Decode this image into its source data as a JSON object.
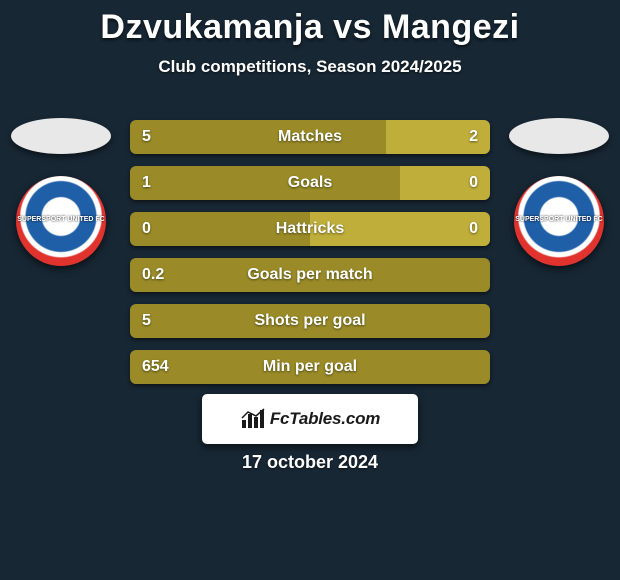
{
  "title": "Dzvukamanja vs Mangezi",
  "subtitle": "Club competitions, Season 2024/2025",
  "date": "17 october 2024",
  "brand": "FcTables.com",
  "colors": {
    "background": "#172734",
    "left_bar": "#9a8b28",
    "right_bar": "#bfae3a",
    "text": "#ffffff"
  },
  "players": {
    "left": {
      "club_text": "SUPERSPORT\nUNITED FC"
    },
    "right": {
      "club_text": "SUPERSPORT\nUNITED FC"
    }
  },
  "stats": [
    {
      "label": "Matches",
      "left_value": "5",
      "right_value": "2",
      "left_pct": 71,
      "right_pct": 29
    },
    {
      "label": "Goals",
      "left_value": "1",
      "right_value": "0",
      "left_pct": 75,
      "right_pct": 25
    },
    {
      "label": "Hattricks",
      "left_value": "0",
      "right_value": "0",
      "left_pct": 50,
      "right_pct": 50
    },
    {
      "label": "Goals per match",
      "left_value": "0.2",
      "right_value": "",
      "left_pct": 100,
      "right_pct": 0
    },
    {
      "label": "Shots per goal",
      "left_value": "5",
      "right_value": "",
      "left_pct": 100,
      "right_pct": 0
    },
    {
      "label": "Min per goal",
      "left_value": "654",
      "right_value": "",
      "left_pct": 100,
      "right_pct": 0
    }
  ]
}
